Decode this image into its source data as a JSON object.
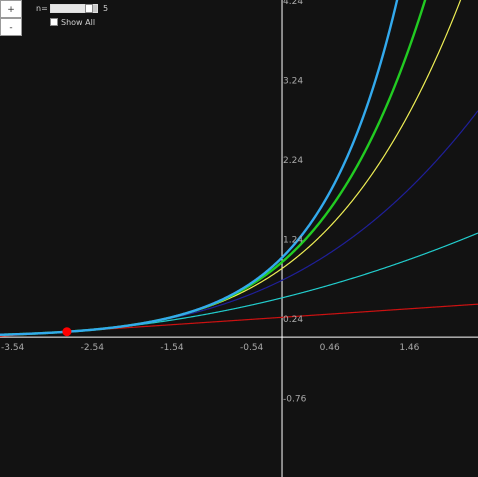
{
  "controls": {
    "zoom_in_label": "+",
    "zoom_out_label": "-",
    "n_label": "n=",
    "n_value": "5",
    "n_fraction": 0.85,
    "show_all_label": "Show All",
    "show_all_checked": false
  },
  "chart_data": {
    "type": "line",
    "title": "",
    "xlabel": "",
    "ylabel": "",
    "xlim": [
      -3.54,
      2.46
    ],
    "ylim": [
      -1.76,
      4.24
    ],
    "x_ticks": [
      "-3.54",
      "-2.54",
      "-1.54",
      "-0.54",
      "0.46",
      "1.46"
    ],
    "y_ticks": [
      "4.24",
      "3.24",
      "2.24",
      "1.24",
      "0.24",
      "-0.76"
    ],
    "grid": false,
    "center": -2.7,
    "point": {
      "x": -2.7,
      "y": 0.0672,
      "color": "#ff0000"
    },
    "series": [
      {
        "color": "#cc1111",
        "degree": 1
      },
      {
        "color": "#22cccc",
        "degree": 2
      },
      {
        "color": "#1f1f99",
        "degree": 3
      },
      {
        "color": "#eeee55",
        "degree": 4
      },
      {
        "color": "#22cc22",
        "degree": 5
      },
      {
        "color": "#33aaee",
        "exact": true
      }
    ]
  }
}
